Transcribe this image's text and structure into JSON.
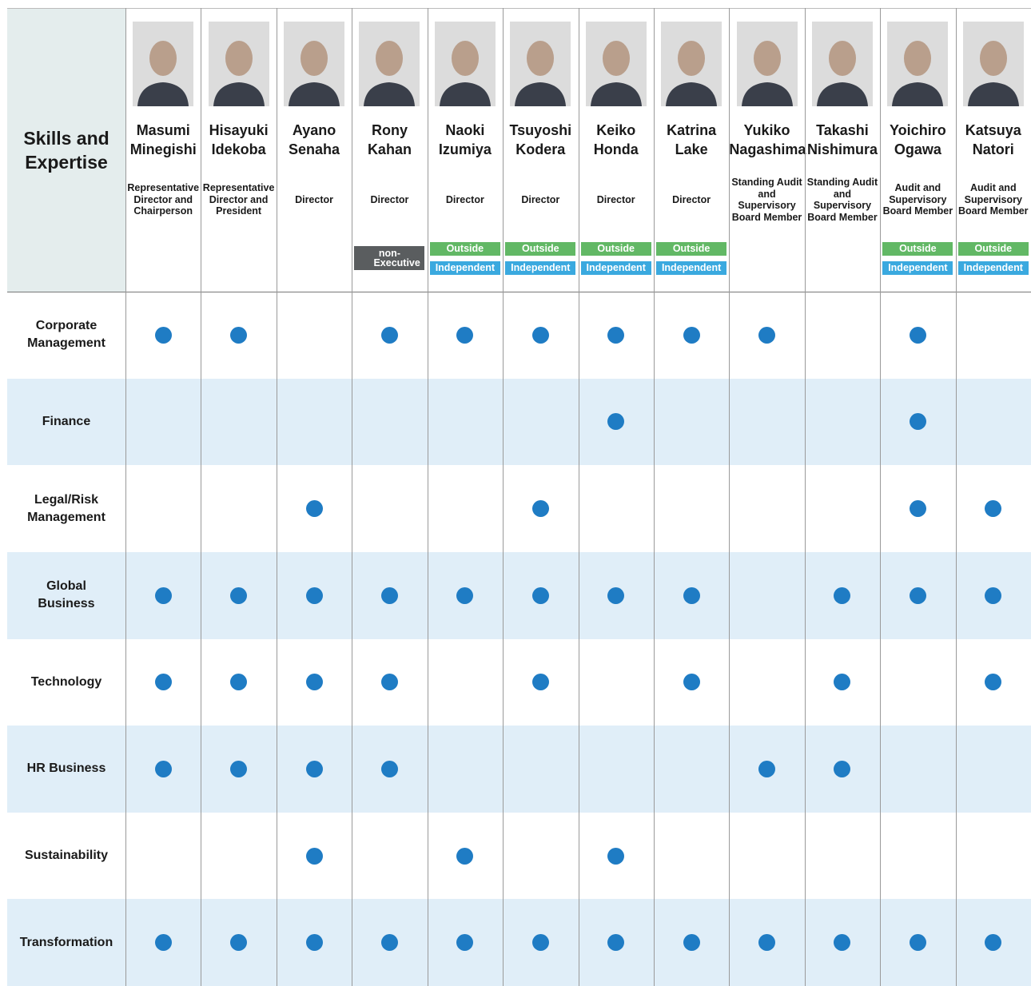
{
  "table": {
    "corner_title": "Skills and Expertise",
    "directors": [
      {
        "first_name": "Masumi",
        "last_name": "Minegishi",
        "role": "Representative Director and Chairperson",
        "badges": []
      },
      {
        "first_name": "Hisayuki",
        "last_name": "Idekoba",
        "role": "Representative Director and President",
        "badges": []
      },
      {
        "first_name": "Ayano",
        "last_name": "Senaha",
        "role": "Director",
        "badges": []
      },
      {
        "first_name": "Rony",
        "last_name": "Kahan",
        "role": "Director",
        "badges": [
          {
            "label": "non-Executive",
            "color": "#5a5d5f"
          }
        ]
      },
      {
        "first_name": "Naoki",
        "last_name": "Izumiya",
        "role": "Director",
        "badges": [
          {
            "label": "Outside",
            "color": "#62b865"
          },
          {
            "label": "Independent",
            "color": "#3aa9df"
          }
        ]
      },
      {
        "first_name": "Tsuyoshi",
        "last_name": "Kodera",
        "role": "Director",
        "badges": [
          {
            "label": "Outside",
            "color": "#62b865"
          },
          {
            "label": "Independent",
            "color": "#3aa9df"
          }
        ]
      },
      {
        "first_name": "Keiko",
        "last_name": "Honda",
        "role": "Director",
        "badges": [
          {
            "label": "Outside",
            "color": "#62b865"
          },
          {
            "label": "Independent",
            "color": "#3aa9df"
          }
        ]
      },
      {
        "first_name": "Katrina",
        "last_name": "Lake",
        "role": "Director",
        "badges": [
          {
            "label": "Outside",
            "color": "#62b865"
          },
          {
            "label": "Independent",
            "color": "#3aa9df"
          }
        ]
      },
      {
        "first_name": "Yukiko",
        "last_name": "Nagashima",
        "role": "Standing Audit and Supervisory Board Member",
        "badges": []
      },
      {
        "first_name": "Takashi",
        "last_name": "Nishimura",
        "role": "Standing Audit and Supervisory Board Member",
        "badges": []
      },
      {
        "first_name": "Yoichiro",
        "last_name": "Ogawa",
        "role": "Audit and Supervisory Board Member",
        "badges": [
          {
            "label": "Outside",
            "color": "#62b865"
          },
          {
            "label": "Independent",
            "color": "#3aa9df"
          }
        ]
      },
      {
        "first_name": "Katsuya",
        "last_name": "Natori",
        "role": "Audit and Supervisory Board Member",
        "badges": [
          {
            "label": "Outside",
            "color": "#62b865"
          },
          {
            "label": "Independent",
            "color": "#3aa9df"
          }
        ]
      }
    ],
    "rows": [
      {
        "skill": "Corporate Management",
        "has": [
          true,
          true,
          false,
          true,
          true,
          true,
          true,
          true,
          true,
          false,
          true,
          false
        ]
      },
      {
        "skill": "Finance",
        "has": [
          false,
          false,
          false,
          false,
          false,
          false,
          true,
          false,
          false,
          false,
          true,
          false
        ]
      },
      {
        "skill": "Legal/Risk Management",
        "has": [
          false,
          false,
          true,
          false,
          false,
          true,
          false,
          false,
          false,
          false,
          true,
          true
        ]
      },
      {
        "skill": "Global Business",
        "has": [
          true,
          true,
          true,
          true,
          true,
          true,
          true,
          true,
          false,
          true,
          true,
          true
        ]
      },
      {
        "skill": "Technology",
        "has": [
          true,
          true,
          true,
          true,
          false,
          true,
          false,
          true,
          false,
          true,
          false,
          true
        ]
      },
      {
        "skill": "HR Business",
        "has": [
          true,
          true,
          true,
          true,
          false,
          false,
          false,
          false,
          true,
          true,
          false,
          false
        ]
      },
      {
        "skill": "Sustainability",
        "has": [
          false,
          false,
          true,
          false,
          true,
          false,
          true,
          false,
          false,
          false,
          false,
          false
        ]
      },
      {
        "skill": "Transformation",
        "has": [
          true,
          true,
          true,
          true,
          true,
          true,
          true,
          true,
          true,
          true,
          true,
          true
        ]
      }
    ],
    "dot_color": "#1f7cc4"
  }
}
